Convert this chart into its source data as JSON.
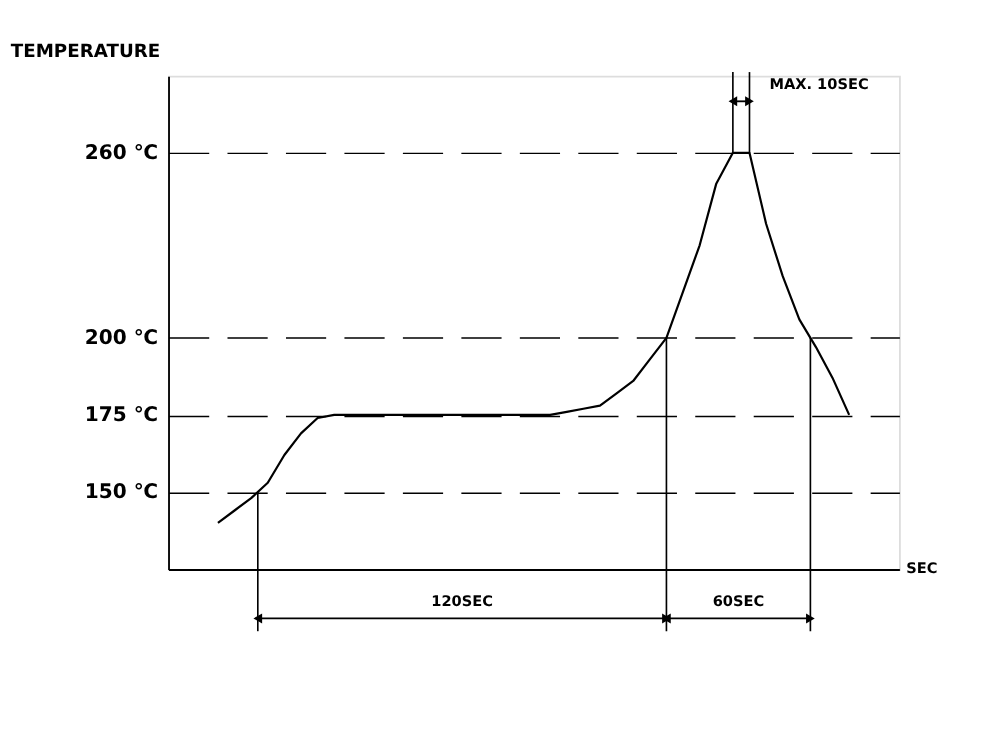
{
  "chart_data": {
    "type": "line",
    "title": "TEMPERATURE",
    "xlabel": "SEC",
    "categories": [
      null,
      null,
      null,
      null,
      null,
      null,
      null,
      null,
      null,
      null,
      null,
      null,
      null,
      null,
      null,
      null,
      null,
      null,
      null,
      null,
      null,
      null,
      null,
      null,
      null,
      null,
      null,
      null,
      null,
      null,
      null,
      null,
      null,
      null,
      null,
      null,
      null,
      null,
      null
    ],
    "values": [
      140,
      144,
      148,
      153,
      162,
      169,
      174,
      175,
      175,
      175,
      175,
      175,
      175,
      175,
      175,
      175,
      175,
      175,
      175,
      175,
      175,
      176,
      177,
      178,
      182,
      186,
      193,
      200,
      215,
      230,
      250,
      260,
      260,
      237,
      220,
      206,
      197,
      187,
      175
    ],
    "color": "#000000",
    "marker": "none",
    "line_style": "solid",
    "tick_labels": "y",
    "grid": "y",
    "ylim": [
      125,
      285
    ],
    "yticks": [
      {
        "value": 150,
        "label": "150 ℃"
      },
      {
        "value": 175,
        "label": "175 ℃"
      },
      {
        "value": 200,
        "label": "200 ℃"
      },
      {
        "value": 260,
        "label": "260 ℃"
      }
    ],
    "annotations": [
      "120SEC",
      "60SEC",
      "MAX. 10SEC"
    ]
  }
}
